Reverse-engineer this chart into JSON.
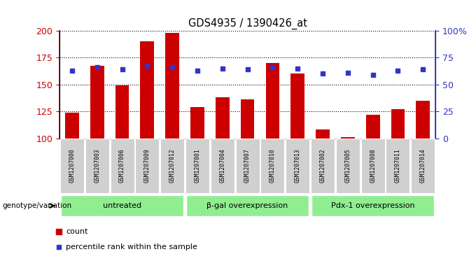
{
  "title": "GDS4935 / 1390426_at",
  "samples": [
    "GSM1207000",
    "GSM1207003",
    "GSM1207006",
    "GSM1207009",
    "GSM1207012",
    "GSM1207001",
    "GSM1207004",
    "GSM1207007",
    "GSM1207010",
    "GSM1207013",
    "GSM1207002",
    "GSM1207005",
    "GSM1207008",
    "GSM1207011",
    "GSM1207014"
  ],
  "counts": [
    124,
    167,
    149,
    190,
    198,
    129,
    138,
    136,
    170,
    160,
    108,
    101,
    122,
    127,
    135
  ],
  "percentiles": [
    63,
    66,
    64,
    67,
    66,
    63,
    65,
    64,
    66,
    65,
    60,
    61,
    59,
    63,
    64
  ],
  "groups": [
    {
      "label": "untreated",
      "start": 0,
      "end": 5
    },
    {
      "label": "β-gal overexpression",
      "start": 5,
      "end": 10
    },
    {
      "label": "Pdx-1 overexpression",
      "start": 10,
      "end": 15
    }
  ],
  "ylim_left": [
    100,
    200
  ],
  "ylim_right": [
    0,
    100
  ],
  "yticks_left": [
    100,
    125,
    150,
    175,
    200
  ],
  "yticks_right": [
    0,
    25,
    50,
    75,
    100
  ],
  "bar_color": "#cc0000",
  "dot_color": "#3333cc",
  "group_bg_color": "#90ee90",
  "sample_bg_color": "#d0d0d0",
  "legend_count": "count",
  "legend_pct": "percentile rank within the sample",
  "gv_label": "genotype/variation"
}
